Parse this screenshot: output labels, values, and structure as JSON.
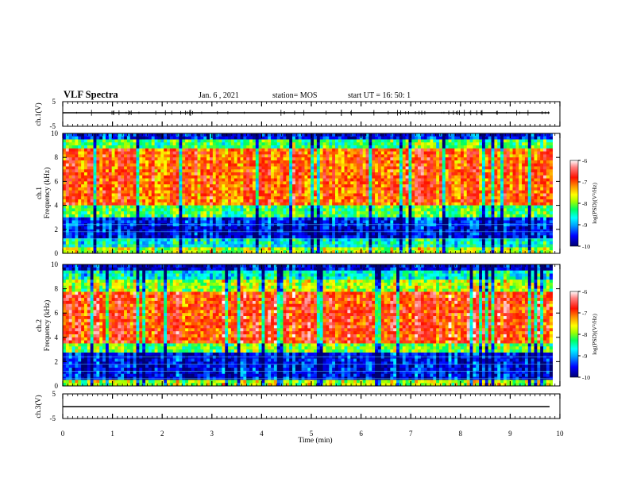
{
  "header": {
    "title": "VLF Spectra",
    "date": "Jan. 6 , 2021",
    "station": "station= MOS",
    "start_ut": "start  UT =   16: 50: 1"
  },
  "panels": {
    "ch1_wave": {
      "label": "ch.1(V)",
      "ticks": [
        "5",
        "-5"
      ]
    },
    "spec1": {
      "ylabel_ch": "ch.1",
      "ylabel": "Frequency (kHz)",
      "yticks": [
        "0",
        "2",
        "4",
        "6",
        "8",
        "10"
      ]
    },
    "spec2": {
      "ylabel_ch": "ch.2",
      "ylabel": "Frequency (kHz)",
      "yticks": [
        "0",
        "2",
        "4",
        "6",
        "8",
        "10"
      ]
    },
    "ch3_wave": {
      "label": "ch.3(V)",
      "ticks": [
        "5",
        "-5"
      ]
    },
    "xaxis": {
      "label": "Time (min)",
      "ticks": [
        "0",
        "1",
        "2",
        "3",
        "4",
        "5",
        "6",
        "7",
        "8",
        "9",
        "10"
      ]
    }
  },
  "colorbar": {
    "label": "log(PSD)(V²/Hz)",
    "ticks": [
      "-6",
      "-7",
      "-8",
      "-9",
      "-10"
    ],
    "colors": [
      "#000080",
      "#0000ff",
      "#00b0ff",
      "#00ffff",
      "#00ff60",
      "#80ff00",
      "#ffff00",
      "#ffa000",
      "#ff2000",
      "#ff6060",
      "#ffffff"
    ]
  },
  "chart_data": [
    {
      "type": "line",
      "title": "ch.1(V)",
      "x_range_min": [
        0,
        10
      ],
      "ylim": [
        -5,
        5
      ],
      "note_series": "waveform near constant ~ -1 V with small spikes"
    },
    {
      "type": "heatmap",
      "title": "ch.1",
      "xlabel": "Time (min)",
      "ylabel": "Frequency (kHz)",
      "xlim": [
        0,
        9.85
      ],
      "ylim": [
        0,
        10
      ],
      "zlim": [
        -10,
        -6
      ],
      "bands": [
        {
          "f_low": 0,
          "f_high": 0.5,
          "log_psd": -7.8
        },
        {
          "f_low": 0.5,
          "f_high": 1.2,
          "log_psd": -8.6
        },
        {
          "f_low": 1.2,
          "f_high": 2.2,
          "log_psd": -9.6
        },
        {
          "f_low": 2.2,
          "f_high": 3.0,
          "log_psd": -9.4
        },
        {
          "f_low": 3.0,
          "f_high": 4.0,
          "log_psd": -8.2
        },
        {
          "f_low": 4.0,
          "f_high": 8.8,
          "log_psd": -7.0
        },
        {
          "f_low": 8.8,
          "f_high": 9.4,
          "log_psd": -8.2
        },
        {
          "f_low": 9.4,
          "f_high": 10,
          "log_psd": -9.5
        }
      ]
    },
    {
      "type": "heatmap",
      "title": "ch.2",
      "xlabel": "Time (min)",
      "ylabel": "Frequency (kHz)",
      "xlim": [
        0,
        9.85
      ],
      "ylim": [
        0,
        10
      ],
      "zlim": [
        -10,
        -6
      ],
      "bands": [
        {
          "f_low": 0,
          "f_high": 0.5,
          "log_psd": -7.8
        },
        {
          "f_low": 0.5,
          "f_high": 2.8,
          "log_psd": -9.5
        },
        {
          "f_low": 2.8,
          "f_high": 3.6,
          "log_psd": -8.0
        },
        {
          "f_low": 3.6,
          "f_high": 7.8,
          "log_psd": -6.8
        },
        {
          "f_low": 7.8,
          "f_high": 8.8,
          "log_psd": -7.8
        },
        {
          "f_low": 8.8,
          "f_high": 9.5,
          "log_psd": -8.6
        },
        {
          "f_low": 9.5,
          "f_high": 10,
          "log_psd": -9.6
        }
      ]
    },
    {
      "type": "line",
      "title": "ch.3(V)",
      "x_range_min": [
        0,
        10
      ],
      "ylim": [
        -5,
        5
      ],
      "note_series": "flat line ~ -1 V"
    }
  ]
}
